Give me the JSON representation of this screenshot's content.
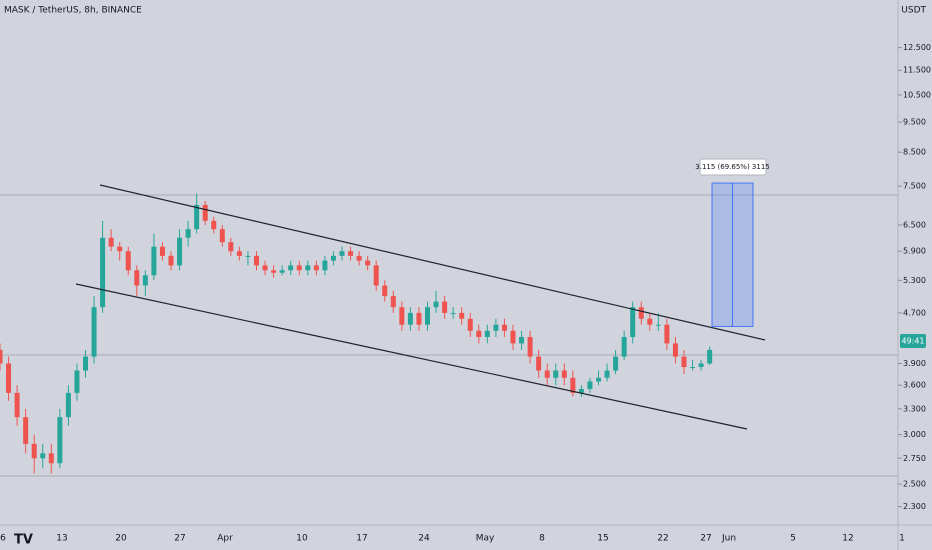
{
  "chart_data": {
    "type": "candlestick",
    "title": "MASK / TetherUS, 8h, BINANCE",
    "currency": "USDT",
    "countdown": "49:41",
    "up_color": "#26a69a",
    "down_color": "#ef5350",
    "log_scale": true,
    "ylim": [
      2.15,
      14.9
    ],
    "yticks": [
      {
        "value": 12.5,
        "label": "12.500"
      },
      {
        "value": 11.5,
        "label": "11.500"
      },
      {
        "value": 10.5,
        "label": "10.500"
      },
      {
        "value": 9.5,
        "label": "9.500"
      },
      {
        "value": 8.5,
        "label": "8.500"
      },
      {
        "value": 7.5,
        "label": "7.500"
      },
      {
        "value": 6.5,
        "label": "6.500"
      },
      {
        "value": 5.9,
        "label": "5.900"
      },
      {
        "value": 5.3,
        "label": "5.300"
      },
      {
        "value": 4.7,
        "label": "4.700"
      },
      {
        "value": 3.9,
        "label": "3.900"
      },
      {
        "value": 3.6,
        "label": "3.600"
      },
      {
        "value": 3.3,
        "label": "3.300"
      },
      {
        "value": 3,
        "label": "3.000"
      },
      {
        "value": 2.75,
        "label": "2.750"
      },
      {
        "value": 2.5,
        "label": "2.500"
      },
      {
        "value": 2.3,
        "label": "2.300"
      }
    ],
    "x_labels": [
      "6",
      "13",
      "20",
      "27",
      "Apr",
      "10",
      "17",
      "24",
      "May",
      "8",
      "15",
      "22",
      "27",
      "Jun",
      "5",
      "12",
      "1"
    ],
    "measure": {
      "label": "3.115 (69.65%) 3115",
      "from": 4.472,
      "to": 7.587
    },
    "candles": [
      [
        4.1,
        4.2,
        3.8,
        3.9
      ],
      [
        3.9,
        4.0,
        3.4,
        3.5
      ],
      [
        3.5,
        3.6,
        3.1,
        3.2
      ],
      [
        3.2,
        3.3,
        2.8,
        2.9
      ],
      [
        2.9,
        3.0,
        2.6,
        2.75
      ],
      [
        2.75,
        2.9,
        2.65,
        2.8
      ],
      [
        2.8,
        2.9,
        2.6,
        2.7
      ],
      [
        2.7,
        3.3,
        2.65,
        3.2
      ],
      [
        3.2,
        3.6,
        3.1,
        3.5
      ],
      [
        3.5,
        3.9,
        3.4,
        3.8
      ],
      [
        3.8,
        4.1,
        3.7,
        4.0
      ],
      [
        4.0,
        5.0,
        3.9,
        4.8
      ],
      [
        4.8,
        6.6,
        4.7,
        6.2
      ],
      [
        6.2,
        6.4,
        5.9,
        6.0
      ],
      [
        6.0,
        6.1,
        5.7,
        5.9
      ],
      [
        5.9,
        6.0,
        5.4,
        5.5
      ],
      [
        5.5,
        5.6,
        5.0,
        5.2
      ],
      [
        5.2,
        5.5,
        5.0,
        5.4
      ],
      [
        5.4,
        6.3,
        5.3,
        6.0
      ],
      [
        6.0,
        6.1,
        5.7,
        5.8
      ],
      [
        5.8,
        5.9,
        5.5,
        5.6
      ],
      [
        5.6,
        6.4,
        5.5,
        6.2
      ],
      [
        6.2,
        6.6,
        6.0,
        6.4
      ],
      [
        6.4,
        7.3,
        6.3,
        7.0
      ],
      [
        7.0,
        7.1,
        6.5,
        6.6
      ],
      [
        6.6,
        6.7,
        6.3,
        6.4
      ],
      [
        6.4,
        6.5,
        6.0,
        6.1
      ],
      [
        6.1,
        6.2,
        5.8,
        5.9
      ],
      [
        5.9,
        6.0,
        5.7,
        5.8
      ],
      [
        5.8,
        5.9,
        5.6,
        5.8
      ],
      [
        5.8,
        5.9,
        5.5,
        5.6
      ],
      [
        5.6,
        5.7,
        5.4,
        5.5
      ],
      [
        5.5,
        5.6,
        5.35,
        5.45
      ],
      [
        5.45,
        5.6,
        5.4,
        5.5
      ],
      [
        5.5,
        5.7,
        5.4,
        5.6
      ],
      [
        5.6,
        5.7,
        5.4,
        5.5
      ],
      [
        5.5,
        5.7,
        5.4,
        5.6
      ],
      [
        5.6,
        5.7,
        5.4,
        5.5
      ],
      [
        5.5,
        5.8,
        5.4,
        5.7
      ],
      [
        5.7,
        5.9,
        5.6,
        5.8
      ],
      [
        5.8,
        6.0,
        5.7,
        5.9
      ],
      [
        5.9,
        6.0,
        5.7,
        5.8
      ],
      [
        5.8,
        5.9,
        5.6,
        5.7
      ],
      [
        5.7,
        5.8,
        5.5,
        5.6
      ],
      [
        5.6,
        5.7,
        5.1,
        5.2
      ],
      [
        5.2,
        5.3,
        4.9,
        5.0
      ],
      [
        5.0,
        5.1,
        4.7,
        4.8
      ],
      [
        4.8,
        4.9,
        4.4,
        4.5
      ],
      [
        4.5,
        4.8,
        4.4,
        4.7
      ],
      [
        4.7,
        4.8,
        4.4,
        4.5
      ],
      [
        4.5,
        4.9,
        4.4,
        4.8
      ],
      [
        4.8,
        5.1,
        4.7,
        4.9
      ],
      [
        4.9,
        5.0,
        4.6,
        4.7
      ],
      [
        4.7,
        4.8,
        4.6,
        4.7
      ],
      [
        4.7,
        4.8,
        4.5,
        4.6
      ],
      [
        4.6,
        4.7,
        4.3,
        4.4
      ],
      [
        4.4,
        4.5,
        4.2,
        4.3
      ],
      [
        4.3,
        4.5,
        4.2,
        4.4
      ],
      [
        4.4,
        4.6,
        4.3,
        4.5
      ],
      [
        4.5,
        4.6,
        4.3,
        4.4
      ],
      [
        4.4,
        4.5,
        4.1,
        4.2
      ],
      [
        4.2,
        4.4,
        4.1,
        4.3
      ],
      [
        4.3,
        4.4,
        3.9,
        4.0
      ],
      [
        4.0,
        4.1,
        3.7,
        3.8
      ],
      [
        3.8,
        3.9,
        3.6,
        3.7
      ],
      [
        3.7,
        3.9,
        3.6,
        3.8
      ],
      [
        3.8,
        3.9,
        3.6,
        3.7
      ],
      [
        3.7,
        3.8,
        3.45,
        3.5
      ],
      [
        3.5,
        3.6,
        3.45,
        3.55
      ],
      [
        3.55,
        3.7,
        3.5,
        3.65
      ],
      [
        3.65,
        3.8,
        3.6,
        3.7
      ],
      [
        3.7,
        3.9,
        3.65,
        3.8
      ],
      [
        3.8,
        4.1,
        3.75,
        4.0
      ],
      [
        4.0,
        4.4,
        3.95,
        4.3
      ],
      [
        4.3,
        4.9,
        4.2,
        4.8
      ],
      [
        4.8,
        4.9,
        4.5,
        4.6
      ],
      [
        4.6,
        4.7,
        4.4,
        4.5
      ],
      [
        4.5,
        4.7,
        4.4,
        4.5
      ],
      [
        4.5,
        4.6,
        4.1,
        4.2
      ],
      [
        4.2,
        4.3,
        3.9,
        4.0
      ],
      [
        4.0,
        4.1,
        3.75,
        3.85
      ],
      [
        3.85,
        3.95,
        3.8,
        3.85
      ],
      [
        3.85,
        3.95,
        3.8,
        3.9
      ],
      [
        3.9,
        4.15,
        3.88,
        4.1
      ]
    ]
  }
}
